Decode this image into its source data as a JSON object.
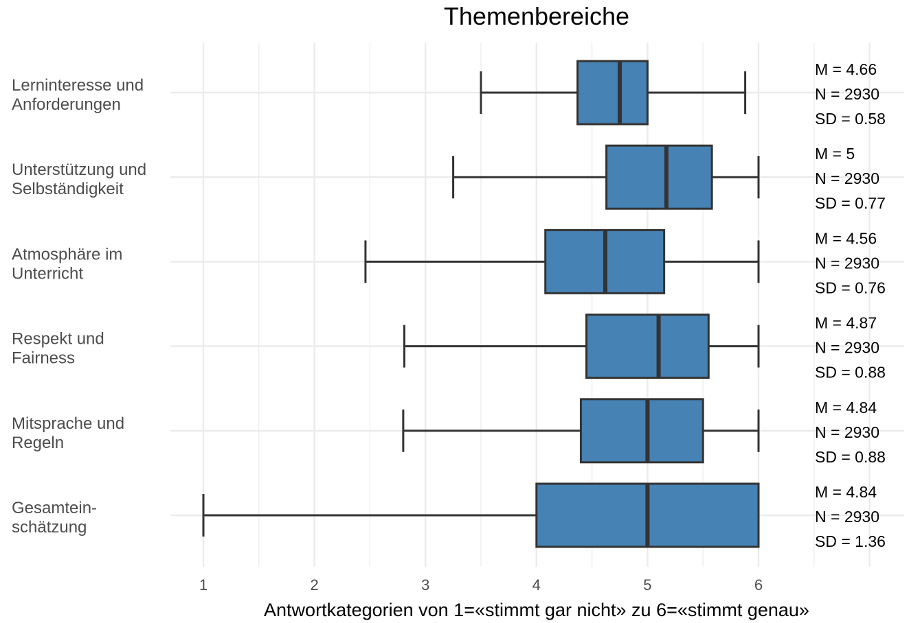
{
  "chart_data": {
    "type": "boxplot",
    "title": "Themenbereiche",
    "xlabel": "Antwortkategorien von 1=«stimmt gar nicht» zu 6=«stimmt genau»",
    "ylabel": "",
    "xlim": [
      0.85,
      6.5
    ],
    "xticks": [
      "1",
      "2",
      "3",
      "4",
      "5",
      "6"
    ],
    "grid": true,
    "box_color": "#4682B4",
    "categories": [
      {
        "label_lines": [
          "Lerninteresse und",
          "Anforderungen"
        ],
        "whisker_low": 3.5,
        "q1": 4.37,
        "median": 4.75,
        "q3": 5.0,
        "whisker_high": 5.88,
        "stats": [
          "M = 4.66",
          "N = 2930",
          "SD = 0.58"
        ]
      },
      {
        "label_lines": [
          "Unterstützung und",
          "Selbständigkeit"
        ],
        "whisker_low": 3.25,
        "q1": 4.63,
        "median": 5.17,
        "q3": 5.58,
        "whisker_high": 6.0,
        "stats": [
          "M = 5",
          "N = 2930",
          "SD = 0.77"
        ]
      },
      {
        "label_lines": [
          "Atmosphäre im",
          "Unterricht"
        ],
        "whisker_low": 2.46,
        "q1": 4.08,
        "median": 4.62,
        "q3": 5.15,
        "whisker_high": 6.0,
        "stats": [
          "M = 4.56",
          "N = 2930",
          "SD = 0.76"
        ]
      },
      {
        "label_lines": [
          "Respekt und",
          "Fairness"
        ],
        "whisker_low": 2.81,
        "q1": 4.45,
        "median": 5.1,
        "q3": 5.55,
        "whisker_high": 6.0,
        "stats": [
          "M = 4.87",
          "N = 2930",
          "SD = 0.88"
        ]
      },
      {
        "label_lines": [
          "Mitsprache und",
          "Regeln"
        ],
        "whisker_low": 2.8,
        "q1": 4.4,
        "median": 5.0,
        "q3": 5.5,
        "whisker_high": 6.0,
        "stats": [
          "M = 4.84",
          "N = 2930",
          "SD = 0.88"
        ]
      },
      {
        "label_lines": [
          "Gesamtein-",
          "schätzung"
        ],
        "whisker_low": 1.0,
        "q1": 4.0,
        "median": 5.0,
        "q3": 6.0,
        "whisker_high": 6.0,
        "stats": [
          "M = 4.84",
          "N = 2930",
          "SD = 1.36"
        ]
      }
    ]
  }
}
